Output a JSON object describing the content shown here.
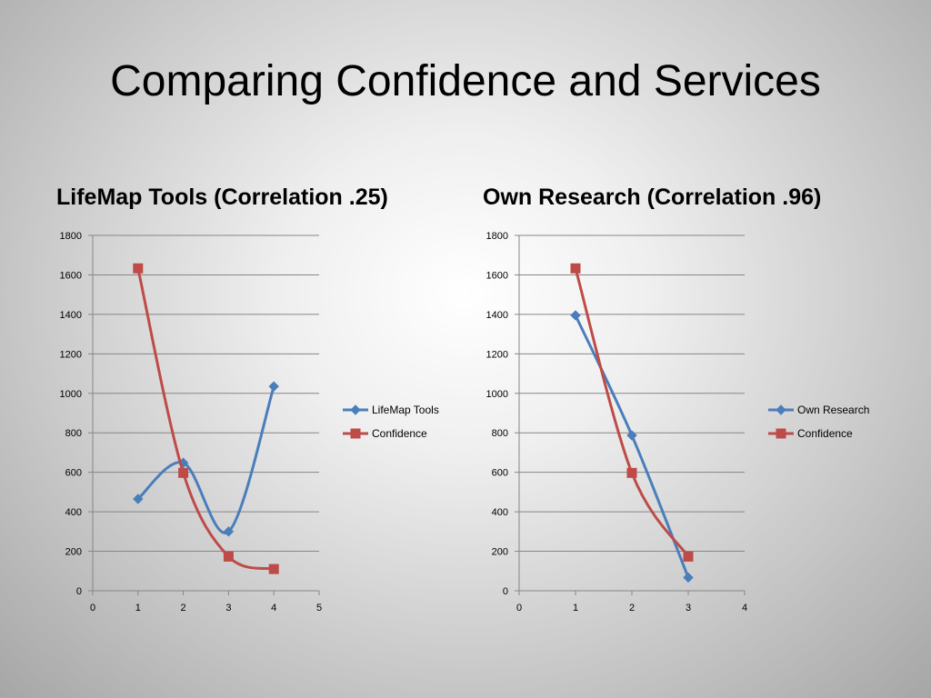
{
  "slide": {
    "title": "Comparing Confidence and Services"
  },
  "colors": {
    "blue": "#4a7ebb",
    "red": "#be4b48",
    "gridline": "#868686",
    "axis": "#868686"
  },
  "chart_data": [
    {
      "type": "scatter",
      "lines": "smooth",
      "title": "LifeMap Tools (Correlation .25)",
      "xlim": [
        0,
        5
      ],
      "ylim": [
        0,
        1800
      ],
      "xticks": [
        0,
        1,
        2,
        3,
        4,
        5
      ],
      "yticks": [
        0,
        200,
        400,
        600,
        800,
        1000,
        1200,
        1400,
        1600,
        1800
      ],
      "grid": true,
      "legend": "right",
      "series": [
        {
          "name": "LifeMap Tools",
          "marker": "diamond",
          "color": "#4a7ebb",
          "points": [
            [
              1,
              465
            ],
            [
              2,
              648
            ],
            [
              3,
              300
            ],
            [
              4,
              1035
            ]
          ]
        },
        {
          "name": "Confidence",
          "marker": "square",
          "color": "#be4b48",
          "points": [
            [
              1,
              1633
            ],
            [
              2,
              597
            ],
            [
              3,
              173
            ],
            [
              4,
              110
            ]
          ]
        }
      ]
    },
    {
      "type": "scatter",
      "lines": "smooth",
      "title": "Own Research (Correlation .96)",
      "xlim": [
        0,
        4
      ],
      "ylim": [
        0,
        1800
      ],
      "xticks": [
        0,
        1,
        2,
        3,
        4
      ],
      "yticks": [
        0,
        200,
        400,
        600,
        800,
        1000,
        1200,
        1400,
        1600,
        1800
      ],
      "grid": true,
      "legend": "right",
      "series": [
        {
          "name": "Own Research",
          "marker": "diamond",
          "color": "#4a7ebb",
          "points": [
            [
              1,
              1395
            ],
            [
              2,
              787
            ],
            [
              3,
              67
            ]
          ]
        },
        {
          "name": "Confidence",
          "marker": "square",
          "color": "#be4b48",
          "points": [
            [
              1,
              1633
            ],
            [
              2,
              597
            ],
            [
              3,
              173
            ]
          ]
        }
      ]
    }
  ]
}
